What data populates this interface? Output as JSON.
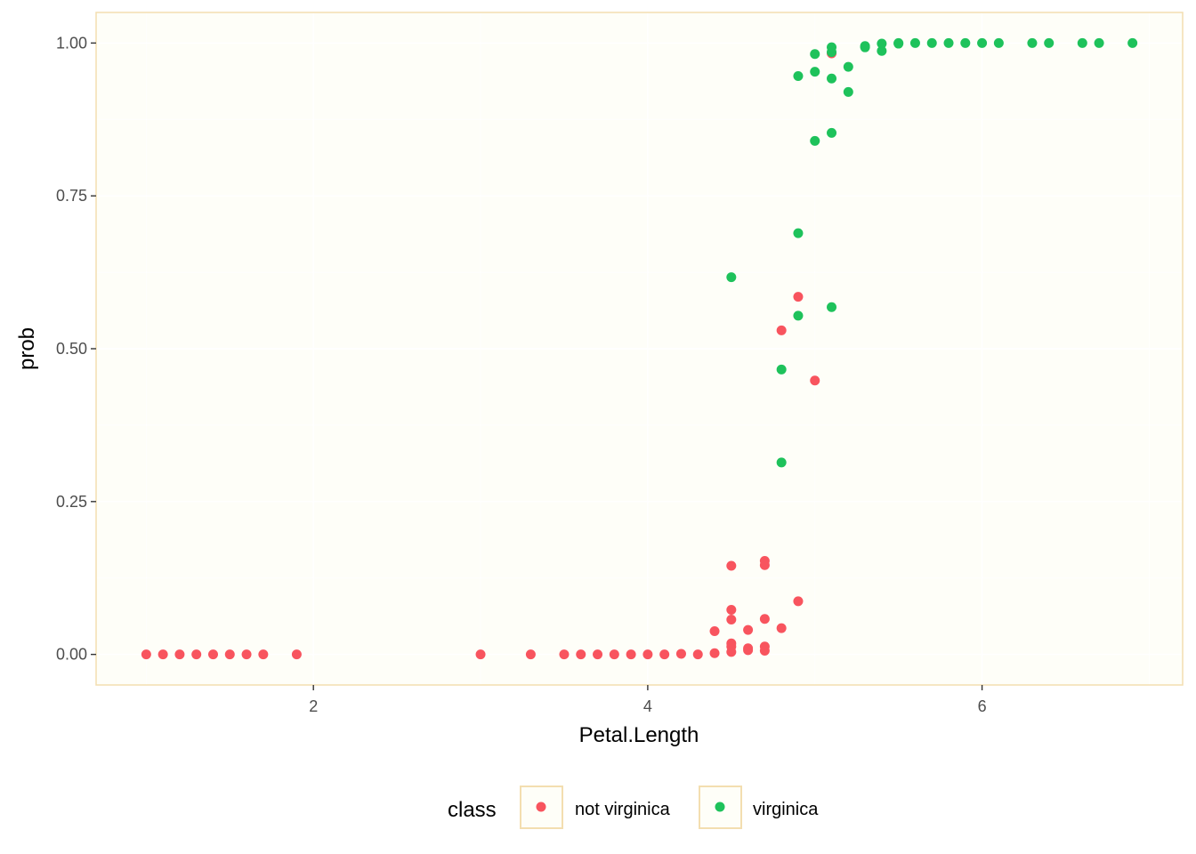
{
  "chart_data": {
    "type": "scatter",
    "xlabel": "Petal.Length",
    "ylabel": "prob",
    "xlim": [
      0.7,
      7.2
    ],
    "ylim": [
      -0.05,
      1.05
    ],
    "x_ticks": [
      2,
      4,
      6
    ],
    "y_ticks": [
      0.0,
      0.25,
      0.5,
      0.75,
      1.0
    ],
    "x_tick_labels": [
      "2",
      "4",
      "6"
    ],
    "y_tick_labels": [
      "0.00",
      "0.25",
      "0.50",
      "0.75",
      "1.00"
    ],
    "grid": true,
    "legend": {
      "title": "class",
      "placement": "bottom"
    },
    "colors": {
      "panel_background": "#fefef8",
      "panel_border": "#f3deb0",
      "grid": "#ffffff"
    },
    "series": [
      {
        "name": "not virginica",
        "color": "#f8545e",
        "points": [
          [
            1.0,
            0.0
          ],
          [
            1.1,
            0.0
          ],
          [
            1.2,
            0.0
          ],
          [
            1.3,
            0.0
          ],
          [
            1.4,
            0.0
          ],
          [
            1.5,
            0.0
          ],
          [
            1.6,
            0.0
          ],
          [
            1.7,
            0.0
          ],
          [
            1.9,
            0.0
          ],
          [
            3.0,
            0.0
          ],
          [
            3.3,
            0.0
          ],
          [
            3.5,
            0.0
          ],
          [
            3.6,
            0.0
          ],
          [
            3.7,
            0.0
          ],
          [
            3.8,
            0.0
          ],
          [
            3.9,
            0.0
          ],
          [
            4.0,
            0.0
          ],
          [
            4.1,
            0.0
          ],
          [
            4.2,
            0.001
          ],
          [
            4.3,
            0.0
          ],
          [
            4.4,
            0.002
          ],
          [
            4.4,
            0.038
          ],
          [
            4.5,
            0.145
          ],
          [
            4.5,
            0.073
          ],
          [
            4.5,
            0.057
          ],
          [
            4.5,
            0.018
          ],
          [
            4.5,
            0.013
          ],
          [
            4.5,
            0.004
          ],
          [
            4.6,
            0.04
          ],
          [
            4.6,
            0.01
          ],
          [
            4.6,
            0.007
          ],
          [
            4.7,
            0.153
          ],
          [
            4.7,
            0.146
          ],
          [
            4.7,
            0.058
          ],
          [
            4.7,
            0.013
          ],
          [
            4.7,
            0.006
          ],
          [
            4.8,
            0.043
          ],
          [
            4.8,
            0.53
          ],
          [
            4.9,
            0.585
          ],
          [
            4.9,
            0.087
          ],
          [
            5.0,
            0.448
          ],
          [
            5.1,
            0.983
          ]
        ]
      },
      {
        "name": "virginica",
        "color": "#1ec25b",
        "points": [
          [
            4.5,
            0.617
          ],
          [
            4.8,
            0.314
          ],
          [
            4.8,
            0.466
          ],
          [
            4.9,
            0.689
          ],
          [
            4.9,
            0.554
          ],
          [
            4.9,
            0.946
          ],
          [
            5.0,
            0.84
          ],
          [
            5.0,
            0.953
          ],
          [
            5.0,
            0.982
          ],
          [
            5.1,
            0.853
          ],
          [
            5.1,
            0.568
          ],
          [
            5.1,
            0.942
          ],
          [
            5.1,
            0.985
          ],
          [
            5.1,
            0.993
          ],
          [
            5.2,
            0.92
          ],
          [
            5.2,
            0.961
          ],
          [
            5.3,
            0.993
          ],
          [
            5.3,
            0.995
          ],
          [
            5.4,
            0.987
          ],
          [
            5.4,
            0.999
          ],
          [
            5.5,
            0.999
          ],
          [
            5.5,
            1.0
          ],
          [
            5.6,
            1.0
          ],
          [
            5.7,
            1.0
          ],
          [
            5.8,
            1.0
          ],
          [
            5.9,
            1.0
          ],
          [
            6.0,
            1.0
          ],
          [
            6.1,
            1.0
          ],
          [
            6.3,
            1.0
          ],
          [
            6.4,
            1.0
          ],
          [
            6.6,
            1.0
          ],
          [
            6.7,
            1.0
          ],
          [
            6.9,
            1.0
          ]
        ]
      }
    ]
  }
}
